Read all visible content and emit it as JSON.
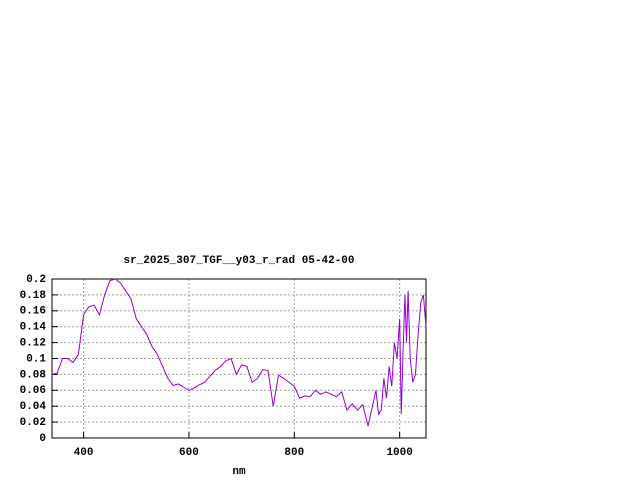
{
  "chart_data": {
    "type": "line",
    "title": "sr_2025_307_TGF__y03_r_rad 05-42-00",
    "x_label": "nm",
    "x": [
      340,
      350,
      360,
      370,
      380,
      390,
      400,
      410,
      420,
      430,
      440,
      450,
      460,
      470,
      480,
      490,
      500,
      510,
      520,
      530,
      540,
      550,
      560,
      570,
      580,
      590,
      600,
      610,
      620,
      630,
      640,
      650,
      660,
      670,
      680,
      690,
      700,
      710,
      720,
      730,
      740,
      750,
      760,
      770,
      780,
      790,
      800,
      810,
      820,
      830,
      840,
      850,
      860,
      870,
      880,
      890,
      900,
      910,
      920,
      930,
      940,
      950,
      955,
      960,
      965,
      970,
      975,
      980,
      985,
      990,
      995,
      1000,
      1003,
      1007,
      1010,
      1013,
      1016,
      1020,
      1025,
      1030,
      1035,
      1040,
      1045,
      1050
    ],
    "series": [
      {
        "name": "sr_2025_307_TGF__y03_r_rad 05-42-00",
        "color": "#9400d3",
        "values": [
          0.08,
          0.082,
          0.1,
          0.1,
          0.095,
          0.105,
          0.155,
          0.165,
          0.167,
          0.155,
          0.18,
          0.198,
          0.2,
          0.195,
          0.185,
          0.175,
          0.15,
          0.14,
          0.13,
          0.115,
          0.105,
          0.09,
          0.075,
          0.066,
          0.068,
          0.064,
          0.06,
          0.063,
          0.067,
          0.07,
          0.078,
          0.085,
          0.09,
          0.097,
          0.1,
          0.08,
          0.092,
          0.09,
          0.07,
          0.075,
          0.086,
          0.085,
          0.04,
          0.079,
          0.075,
          0.07,
          0.065,
          0.05,
          0.053,
          0.052,
          0.06,
          0.055,
          0.058,
          0.055,
          0.052,
          0.058,
          0.035,
          0.043,
          0.035,
          0.042,
          0.015,
          0.045,
          0.06,
          0.03,
          0.035,
          0.075,
          0.05,
          0.09,
          0.065,
          0.12,
          0.1,
          0.15,
          0.03,
          0.12,
          0.18,
          0.12,
          0.185,
          0.1,
          0.07,
          0.08,
          0.13,
          0.17,
          0.18,
          0.14
        ]
      }
    ],
    "xlim": [
      340,
      1050
    ],
    "xticks": [
      400,
      600,
      800,
      1000
    ],
    "ylim": [
      0,
      0.2
    ],
    "yticks": [
      0,
      0.02,
      0.04,
      0.06,
      0.08,
      0.1,
      0.12,
      0.14,
      0.16,
      0.18,
      0.2
    ],
    "grid": true
  }
}
